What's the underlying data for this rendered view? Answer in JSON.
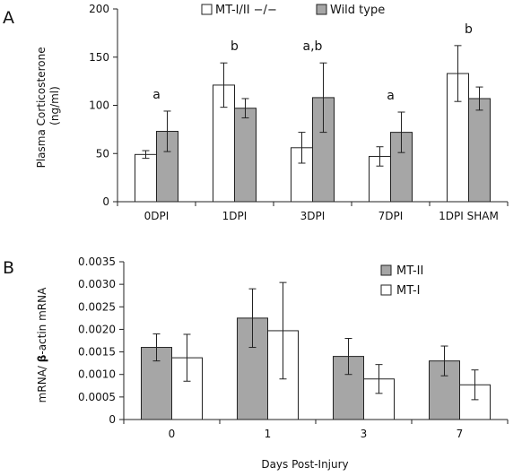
{
  "chart_data": [
    {
      "panel": "A",
      "type": "bar",
      "categories": [
        "0DPI",
        "1DPI",
        "3DPI",
        "7DPI",
        "1DPI SHAM"
      ],
      "series": [
        {
          "name": "MT-I/II −/−",
          "color": "#ffffff",
          "values": [
            49,
            121,
            56,
            47,
            133
          ],
          "errors": [
            4,
            23,
            16,
            10,
            29
          ]
        },
        {
          "name": "Wild type",
          "color": "#a6a6a6",
          "values": [
            73,
            97,
            108,
            72,
            107
          ],
          "errors": [
            21,
            10,
            36,
            21,
            12
          ]
        }
      ],
      "annotations": [
        "a",
        "b",
        "a,b",
        "a",
        "b"
      ],
      "ylabel": "Plasma Corticosterone (ng/ml)",
      "ylabel_lines": [
        "Plasma Corticosterone",
        "(ng/ml)"
      ],
      "xlabel": "",
      "ylim": [
        0,
        200
      ],
      "yticks": [
        "0",
        "50",
        "100",
        "150",
        "200"
      ],
      "legend_position": "top"
    },
    {
      "panel": "B",
      "type": "bar",
      "categories": [
        "0",
        "1",
        "3",
        "7"
      ],
      "series": [
        {
          "name": "MT-II",
          "color": "#a6a6a6",
          "values": [
            0.0016,
            0.00225,
            0.0014,
            0.0013
          ],
          "errors": [
            0.0003,
            0.00065,
            0.0004,
            0.00033
          ]
        },
        {
          "name": "MT-I",
          "color": "#ffffff",
          "values": [
            0.00137,
            0.00197,
            0.0009,
            0.00077
          ],
          "errors": [
            0.00052,
            0.00107,
            0.00032,
            0.00033
          ]
        }
      ],
      "ylabel": "mRNA/ β-actin mRNA",
      "ylabel_parts": [
        "mRNA/ ",
        "β",
        "-actin mRNA"
      ],
      "xlabel": "Days Post-Injury",
      "ylim": [
        0,
        0.0035
      ],
      "yticks": [
        "0",
        "0.0005",
        "0.0010",
        "0.0015",
        "0.0020",
        "0.0025",
        "0.0030",
        "0.0035"
      ],
      "legend_position": "top-right"
    }
  ]
}
